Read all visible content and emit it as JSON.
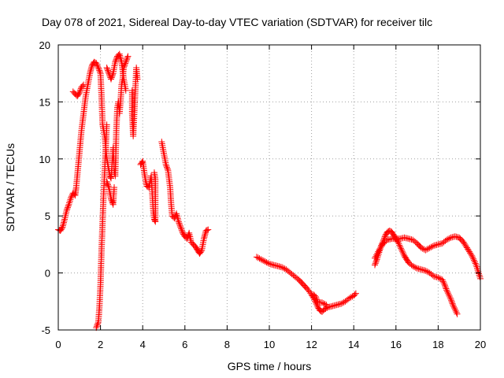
{
  "chart_data": {
    "type": "scatter",
    "title": "Day 078 of 2021, Sidereal Day-to-day VTEC variation (SDTVAR) for receiver tilc",
    "xlabel": "GPS time / hours",
    "ylabel": "SDTVAR / TECUs",
    "xlim": [
      0,
      20
    ],
    "ylim": [
      -5,
      20
    ],
    "xticks": [
      "0",
      "2",
      "4",
      "6",
      "8",
      "10",
      "12",
      "14",
      "16",
      "18",
      "20"
    ],
    "yticks": [
      "-5",
      "0",
      "5",
      "10",
      "15",
      "20"
    ],
    "grid": true,
    "marker": "+",
    "marker_color": "#ff0000",
    "series": [
      {
        "name": "SDTVAR",
        "segments": [
          [
            [
              0.0,
              3.8
            ],
            [
              0.1,
              3.7
            ],
            [
              0.2,
              4.0
            ],
            [
              0.3,
              4.7
            ],
            [
              0.4,
              5.5
            ],
            [
              0.5,
              6.0
            ],
            [
              0.6,
              6.6
            ],
            [
              0.7,
              7.0
            ],
            [
              0.8,
              6.8
            ],
            [
              0.85,
              7.5
            ],
            [
              0.9,
              8.5
            ],
            [
              1.0,
              10.5
            ],
            [
              1.1,
              12.5
            ],
            [
              1.2,
              14.0
            ],
            [
              1.3,
              15.5
            ],
            [
              1.4,
              16.5
            ],
            [
              1.5,
              17.5
            ],
            [
              1.6,
              18.2
            ],
            [
              1.7,
              18.5
            ],
            [
              1.8,
              18.4
            ],
            [
              1.9,
              18.0
            ],
            [
              2.0,
              17.5
            ],
            [
              2.05,
              15.5
            ],
            [
              2.1,
              13.0
            ],
            [
              2.15,
              12.5
            ],
            [
              2.2,
              12.0
            ],
            [
              2.25,
              11.0
            ],
            [
              2.3,
              10.0
            ],
            [
              2.35,
              9.5
            ],
            [
              2.4,
              9.0
            ],
            [
              2.45,
              8.5
            ],
            [
              2.5,
              8.3
            ],
            [
              2.55,
              9.5
            ],
            [
              2.6,
              11.0
            ],
            [
              2.65,
              9.0
            ],
            [
              2.7,
              8.5
            ],
            [
              2.75,
              12.5
            ],
            [
              2.8,
              14.5
            ],
            [
              2.85,
              15.0
            ],
            [
              2.9,
              14.0
            ],
            [
              2.95,
              15.0
            ],
            [
              3.0,
              16.5
            ],
            [
              3.05,
              17.0
            ],
            [
              3.1,
              18.0
            ],
            [
              3.2,
              18.5
            ],
            [
              3.3,
              19.0
            ]
          ],
          [
            [
              0.7,
              15.9
            ],
            [
              0.8,
              15.7
            ],
            [
              0.9,
              15.5
            ],
            [
              1.0,
              15.8
            ],
            [
              1.1,
              16.3
            ],
            [
              1.2,
              16.5
            ]
          ],
          [
            [
              1.8,
              -4.8
            ],
            [
              1.9,
              -4.3
            ],
            [
              1.95,
              -3.0
            ],
            [
              2.0,
              -1.0
            ],
            [
              2.05,
              2.0
            ],
            [
              2.1,
              4.5
            ],
            [
              2.15,
              7.0
            ],
            [
              2.2,
              9.0
            ],
            [
              2.25,
              11.0
            ],
            [
              2.3,
              13.0
            ]
          ],
          [
            [
              2.3,
              18.0
            ],
            [
              2.4,
              17.5
            ],
            [
              2.5,
              17.0
            ],
            [
              2.6,
              17.5
            ],
            [
              2.7,
              18.5
            ],
            [
              2.8,
              19.0
            ],
            [
              2.9,
              19.2
            ],
            [
              3.0,
              18.5
            ],
            [
              3.1,
              17.0
            ],
            [
              3.2,
              16.0
            ]
          ],
          [
            [
              2.3,
              8.0
            ],
            [
              2.4,
              7.5
            ],
            [
              2.5,
              6.5
            ],
            [
              2.6,
              6.0
            ],
            [
              2.65,
              7.5
            ]
          ],
          [
            [
              3.5,
              16.0
            ],
            [
              3.5,
              14.0
            ],
            [
              3.55,
              12.0
            ],
            [
              3.7,
              18.0
            ],
            [
              3.75,
              17.0
            ]
          ],
          [
            [
              3.9,
              9.5
            ],
            [
              4.0,
              9.8
            ],
            [
              4.1,
              8.5
            ],
            [
              4.15,
              8.0
            ],
            [
              4.2,
              7.6
            ],
            [
              4.3,
              7.5
            ],
            [
              4.35,
              8.0
            ],
            [
              4.4,
              8.5
            ],
            [
              4.45,
              7.0
            ],
            [
              4.5,
              5.5
            ],
            [
              4.55,
              4.7
            ],
            [
              4.6,
              4.5
            ],
            [
              4.6,
              8.2
            ],
            [
              4.55,
              8.8
            ]
          ],
          [
            [
              4.9,
              11.5
            ],
            [
              5.0,
              10.5
            ],
            [
              5.1,
              9.5
            ],
            [
              5.2,
              9.0
            ],
            [
              5.3,
              7.5
            ],
            [
              5.35,
              6.0
            ],
            [
              5.4,
              5.0
            ],
            [
              5.5,
              4.8
            ],
            [
              5.6,
              5.2
            ],
            [
              5.7,
              4.5
            ],
            [
              5.8,
              4.0
            ],
            [
              5.9,
              3.5
            ],
            [
              6.0,
              3.2
            ],
            [
              6.1,
              3.0
            ],
            [
              6.2,
              3.5
            ],
            [
              6.3,
              2.7
            ],
            [
              6.4,
              2.5
            ],
            [
              6.5,
              2.3
            ],
            [
              6.6,
              2.0
            ],
            [
              6.7,
              1.7
            ],
            [
              6.8,
              2.0
            ],
            [
              6.9,
              3.0
            ],
            [
              7.0,
              3.7
            ],
            [
              7.1,
              3.8
            ]
          ],
          [
            [
              9.4,
              1.4
            ],
            [
              9.6,
              1.2
            ],
            [
              9.8,
              1.0
            ],
            [
              10.0,
              0.8
            ],
            [
              10.2,
              0.7
            ],
            [
              10.4,
              0.6
            ],
            [
              10.6,
              0.5
            ],
            [
              10.8,
              0.3
            ],
            [
              11.0,
              0.0
            ],
            [
              11.2,
              -0.3
            ],
            [
              11.4,
              -0.6
            ],
            [
              11.6,
              -1.0
            ],
            [
              11.8,
              -1.4
            ],
            [
              12.0,
              -1.9
            ],
            [
              12.1,
              -2.2
            ],
            [
              12.2,
              -2.6
            ],
            [
              12.3,
              -3.0
            ],
            [
              12.4,
              -3.3
            ],
            [
              12.5,
              -3.4
            ],
            [
              12.6,
              -3.2
            ],
            [
              12.8,
              -3.0
            ],
            [
              13.0,
              -2.9
            ],
            [
              13.2,
              -2.8
            ],
            [
              13.4,
              -2.7
            ],
            [
              13.6,
              -2.5
            ],
            [
              13.8,
              -2.2
            ],
            [
              14.0,
              -2.0
            ],
            [
              14.1,
              -1.8
            ]
          ],
          [
            [
              12.1,
              -1.9
            ],
            [
              12.2,
              -2.1
            ],
            [
              12.3,
              -2.6
            ],
            [
              12.5,
              -2.6
            ],
            [
              12.7,
              -2.8
            ]
          ],
          [
            [
              15.0,
              0.7
            ],
            [
              15.1,
              1.2
            ],
            [
              15.2,
              1.8
            ],
            [
              15.3,
              2.4
            ],
            [
              15.4,
              2.8
            ],
            [
              15.5,
              3.3
            ],
            [
              15.6,
              3.6
            ],
            [
              15.7,
              3.7
            ],
            [
              15.8,
              3.6
            ],
            [
              15.9,
              3.3
            ],
            [
              16.0,
              3.0
            ],
            [
              16.1,
              2.7
            ],
            [
              16.2,
              2.3
            ],
            [
              16.3,
              1.9
            ],
            [
              16.4,
              1.5
            ],
            [
              16.5,
              1.2
            ],
            [
              16.6,
              0.9
            ],
            [
              16.8,
              0.6
            ],
            [
              17.0,
              0.4
            ],
            [
              17.2,
              0.3
            ],
            [
              17.4,
              0.2
            ],
            [
              17.6,
              0.0
            ],
            [
              17.8,
              -0.3
            ],
            [
              18.0,
              -0.4
            ],
            [
              18.2,
              -0.6
            ],
            [
              18.3,
              -1.0
            ],
            [
              18.4,
              -1.5
            ],
            [
              18.5,
              -1.9
            ],
            [
              18.6,
              -2.3
            ],
            [
              18.7,
              -2.8
            ],
            [
              18.8,
              -3.2
            ],
            [
              18.9,
              -3.6
            ]
          ],
          [
            [
              15.0,
              1.3
            ],
            [
              15.2,
              2.0
            ],
            [
              15.4,
              2.6
            ],
            [
              15.6,
              2.9
            ],
            [
              15.8,
              3.0
            ],
            [
              16.0,
              3.0
            ],
            [
              16.2,
              3.0
            ],
            [
              16.4,
              3.1
            ],
            [
              16.6,
              3.0
            ],
            [
              16.8,
              2.9
            ],
            [
              17.0,
              2.6
            ],
            [
              17.2,
              2.2
            ],
            [
              17.4,
              2.0
            ],
            [
              17.6,
              2.2
            ],
            [
              17.8,
              2.4
            ],
            [
              18.0,
              2.5
            ],
            [
              18.2,
              2.6
            ],
            [
              18.4,
              2.9
            ],
            [
              18.6,
              3.1
            ],
            [
              18.8,
              3.2
            ],
            [
              19.0,
              3.1
            ],
            [
              19.2,
              2.7
            ],
            [
              19.4,
              2.1
            ],
            [
              19.6,
              1.5
            ],
            [
              19.8,
              0.7
            ],
            [
              19.9,
              0.1
            ],
            [
              20.0,
              -0.5
            ]
          ]
        ]
      }
    ]
  }
}
